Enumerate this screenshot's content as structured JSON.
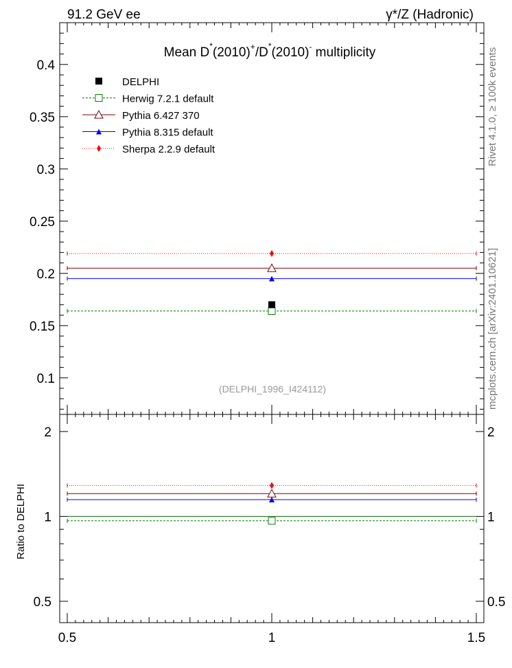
{
  "header": {
    "left_label": "91.2 GeV ee",
    "right_label": "γ*/Z (Hadronic)"
  },
  "side_labels": {
    "rivet": "Rivet 4.1.0, ≥ 100k events",
    "source": "mcplots.cern.ch [arXiv:2401.10621]"
  },
  "chart_data": [
    {
      "type": "scatter",
      "title": "Mean D*(2010)+/D*(2010)- multiplicity",
      "title_parts": {
        "a": "Mean D",
        "star1": "*",
        "b": "(2010)",
        "plus": "+",
        "c": "/D",
        "star2": "*",
        "d": "(2010)",
        "minus": "-",
        "e": " multiplicity"
      },
      "watermark": "(DELPHI_1996_I424112)",
      "xlim": [
        0.5,
        1.5
      ],
      "ylim": [
        0.065,
        0.44
      ],
      "x_ticks": [
        "0.5",
        "1",
        "1.5"
      ],
      "y_ticks": [
        "0.1",
        "0.15",
        "0.2",
        "0.25",
        "0.3",
        "0.35",
        "0.4"
      ],
      "data": {
        "name": "DELPHI",
        "x": 1.0,
        "y": 0.17
      },
      "series": [
        {
          "name": "Herwig 7.2.1 default",
          "x": [
            0.5,
            1.5
          ],
          "value": 0.164,
          "color": "#008000",
          "marker": "open-square",
          "style": "dashed"
        },
        {
          "name": "Pythia 6.427 370",
          "x": [
            0.5,
            1.5
          ],
          "value": 0.205,
          "color": "#800000",
          "marker": "open-triangle",
          "style": "solid"
        },
        {
          "name": "Pythia 8.315 default",
          "x": [
            0.5,
            1.5
          ],
          "value": 0.195,
          "color": "#0000ff",
          "marker": "filled-triangle",
          "style": "solid"
        },
        {
          "name": "Sherpa 2.2.9 default",
          "x": [
            0.5,
            1.5
          ],
          "value": 0.219,
          "color": "#ff0000",
          "marker": "filled-diamond",
          "style": "dotted"
        }
      ]
    },
    {
      "type": "scatter",
      "title": "Ratio to DELPHI",
      "ylabel": "Ratio to DELPHI",
      "xlim": [
        0.5,
        1.5
      ],
      "ylim": [
        0.42,
        2.3
      ],
      "x_ticks": [
        "0.5",
        "1",
        "1.5"
      ],
      "y_ticks": [
        "0.5",
        "1",
        "2"
      ],
      "reference": {
        "name": "DELPHI",
        "value": 1.0,
        "color": "#000000"
      },
      "series": [
        {
          "name": "Herwig 7.2.1 default",
          "value": 0.965,
          "color": "#008000",
          "marker": "open-square",
          "style": "dashed"
        },
        {
          "name": "Pythia 6.427 370",
          "value": 1.205,
          "color": "#800000",
          "marker": "open-triangle",
          "style": "solid"
        },
        {
          "name": "Pythia 8.315 default",
          "value": 1.147,
          "color": "#0000ff",
          "marker": "filled-triangle",
          "style": "solid"
        },
        {
          "name": "Sherpa 2.2.9 default",
          "value": 1.288,
          "color": "#ff0000",
          "marker": "filled-diamond",
          "style": "dotted"
        }
      ]
    }
  ]
}
